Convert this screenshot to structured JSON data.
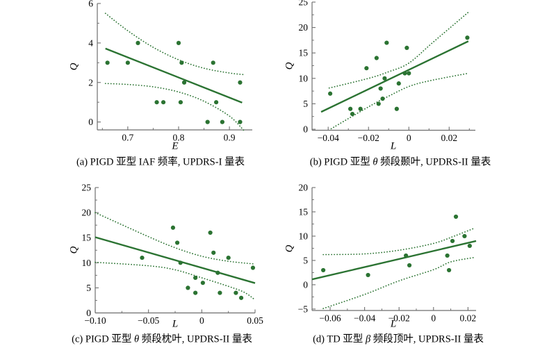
{
  "figure": {
    "background": "#ffffff",
    "accent_green": "#2b7332",
    "axis_color": "#6e6e6e",
    "text_color": "#000000"
  },
  "chart_data": [
    {
      "id": "a",
      "type": "scatter",
      "caption": "(a) PIGD 亚型 IAF 频率, UPDRS-I 量表",
      "xlabel": "E",
      "ylabel": "Q",
      "xlim": [
        0.64,
        0.945
      ],
      "ylim": [
        -0.4,
        6
      ],
      "xticks": [
        0.7,
        0.8,
        0.9
      ],
      "xtick_labels": [
        "0.7",
        "0.8",
        "0.9"
      ],
      "xminor": [
        0.65,
        0.75,
        0.85
      ],
      "yticks": [
        0,
        2,
        4,
        6
      ],
      "ytick_labels": [
        "0",
        "2",
        "4",
        "6"
      ],
      "yminor": [
        1,
        3,
        5
      ],
      "points": [
        [
          0.66,
          3
        ],
        [
          0.7,
          3
        ],
        [
          0.72,
          4
        ],
        [
          0.757,
          1
        ],
        [
          0.77,
          1
        ],
        [
          0.8,
          4
        ],
        [
          0.806,
          3
        ],
        [
          0.811,
          2
        ],
        [
          0.804,
          1
        ],
        [
          0.857,
          0
        ],
        [
          0.868,
          3
        ],
        [
          0.874,
          1
        ],
        [
          0.886,
          0
        ],
        [
          0.921,
          2
        ],
        [
          0.921,
          0
        ]
      ],
      "regression": [
        [
          0.656,
          3.72
        ],
        [
          0.925,
          0.98
        ]
      ],
      "ci_upper": [
        [
          0.656,
          5.5
        ],
        [
          0.7,
          4.62
        ],
        [
          0.75,
          3.78
        ],
        [
          0.8,
          3.15
        ],
        [
          0.85,
          2.72
        ],
        [
          0.9,
          2.48
        ],
        [
          0.928,
          2.4
        ]
      ],
      "ci_lower": [
        [
          0.656,
          1.95
        ],
        [
          0.7,
          1.9
        ],
        [
          0.75,
          1.78
        ],
        [
          0.8,
          1.52
        ],
        [
          0.85,
          1.05
        ],
        [
          0.9,
          0.3
        ],
        [
          0.928,
          -0.42
        ]
      ]
    },
    {
      "id": "b",
      "type": "scatter",
      "caption": "(b) PIGD 亚型 θ 频段颞叶, UPDRS-II 量表",
      "xlabel": "L",
      "ylabel": "Q",
      "xlim": [
        -0.048,
        0.033
      ],
      "ylim": [
        -0.2,
        25
      ],
      "xticks": [
        -0.04,
        -0.02,
        0,
        0.02
      ],
      "xtick_labels": [
        "−0.04",
        "−0.02",
        "0",
        "0.02"
      ],
      "xminor": [
        -0.03,
        -0.01,
        0.01,
        0.03
      ],
      "yticks": [
        0,
        5,
        10,
        15,
        20,
        25
      ],
      "ytick_labels": [
        "0",
        "5",
        "10",
        "15",
        "20",
        "25"
      ],
      "yminor": [
        2.5,
        7.5,
        12.5,
        17.5,
        22.5
      ],
      "points": [
        [
          -0.039,
          7
        ],
        [
          -0.029,
          4
        ],
        [
          -0.028,
          3
        ],
        [
          -0.024,
          4
        ],
        [
          -0.021,
          12
        ],
        [
          -0.016,
          14
        ],
        [
          -0.015,
          5
        ],
        [
          -0.014,
          8
        ],
        [
          -0.013,
          6
        ],
        [
          -0.012,
          10
        ],
        [
          -0.011,
          17
        ],
        [
          -0.006,
          4
        ],
        [
          -0.005,
          9
        ],
        [
          -0.002,
          11
        ],
        [
          -0.001,
          16
        ],
        [
          0.0,
          11
        ],
        [
          0.029,
          18
        ]
      ],
      "regression": [
        [
          -0.0435,
          3.4
        ],
        [
          0.0295,
          17.3
        ]
      ],
      "ci_upper": [
        [
          -0.0395,
          8.1
        ],
        [
          -0.02,
          10.0
        ],
        [
          -0.01,
          11.3
        ],
        [
          0.0,
          13.0
        ],
        [
          0.012,
          17.1
        ],
        [
          0.0295,
          23.0
        ]
      ],
      "ci_lower": [
        [
          -0.0385,
          0.1
        ],
        [
          -0.02,
          4.4
        ],
        [
          -0.01,
          6.5
        ],
        [
          0.0,
          8.4
        ],
        [
          0.01,
          9.5
        ],
        [
          0.0295,
          11.0
        ]
      ]
    },
    {
      "id": "c",
      "type": "scatter",
      "caption": "(c) PIGD 亚型 θ 频段枕叶, UPDRS-II 量表",
      "xlabel": "L",
      "ylabel": "Q",
      "xlim": [
        -0.1,
        0.05
      ],
      "ylim": [
        0,
        25
      ],
      "xticks": [
        -0.1,
        -0.05,
        0,
        0.05
      ],
      "xtick_labels": [
        "−0.10",
        "−0.05",
        "0",
        "0.05"
      ],
      "xminor": [
        -0.075,
        -0.025,
        0.025
      ],
      "yticks": [
        0,
        5,
        10,
        15,
        20,
        25
      ],
      "ytick_labels": [
        "0",
        "5",
        "10",
        "15",
        "20",
        "25"
      ],
      "yminor": [
        2.5,
        7.5,
        12.5,
        17.5,
        22.5
      ],
      "points": [
        [
          -0.056,
          11
        ],
        [
          -0.027,
          17
        ],
        [
          -0.023,
          14
        ],
        [
          -0.02,
          10
        ],
        [
          -0.013,
          5
        ],
        [
          -0.006,
          7
        ],
        [
          -0.006,
          4
        ],
        [
          0.001,
          6
        ],
        [
          0.008,
          16
        ],
        [
          0.011,
          12
        ],
        [
          0.015,
          8
        ],
        [
          0.017,
          4
        ],
        [
          0.025,
          11
        ],
        [
          0.032,
          4
        ],
        [
          0.037,
          3
        ],
        [
          0.048,
          9
        ]
      ],
      "regression": [
        [
          -0.1,
          15.1
        ],
        [
          0.05,
          5.95
        ]
      ],
      "ci_upper": [
        [
          -0.1,
          20.0
        ],
        [
          -0.05,
          15.2
        ],
        [
          -0.025,
          13.0
        ],
        [
          0.0,
          11.3
        ],
        [
          0.025,
          10.3
        ],
        [
          0.05,
          9.75
        ]
      ],
      "ci_lower": [
        [
          -0.1,
          10.1
        ],
        [
          -0.05,
          9.4
        ],
        [
          -0.025,
          8.6
        ],
        [
          0.0,
          7.0
        ],
        [
          0.025,
          5.3
        ],
        [
          0.04,
          4.1
        ],
        [
          0.05,
          2.6
        ]
      ]
    },
    {
      "id": "d",
      "type": "scatter",
      "caption": "(d) TD 亚型 β 频段顶叶, UPDRS-II 量表",
      "xlabel": "L",
      "ylabel": "Q",
      "xlim": [
        -0.0705,
        0.0247
      ],
      "ylim": [
        -5.3,
        20
      ],
      "xticks": [
        -0.06,
        -0.04,
        -0.02,
        0,
        0.02
      ],
      "xtick_labels": [
        "−0.06",
        "−0.04",
        "−0.02",
        "0",
        "0.02"
      ],
      "xminor": [
        -0.05,
        -0.03,
        -0.01,
        0.01
      ],
      "yticks": [
        -5,
        0,
        5,
        10,
        15,
        20
      ],
      "ytick_labels": [
        "−5",
        "0",
        "5",
        "10",
        "15",
        "20"
      ],
      "yminor": [
        -2.5,
        2.5,
        7.5,
        12.5,
        17.5
      ],
      "points": [
        [
          -0.064,
          3
        ],
        [
          -0.038,
          2
        ],
        [
          -0.016,
          6
        ],
        [
          -0.014,
          4
        ],
        [
          0.008,
          6
        ],
        [
          0.009,
          3
        ],
        [
          0.011,
          9
        ],
        [
          0.013,
          14
        ],
        [
          0.018,
          10
        ],
        [
          0.021,
          8
        ]
      ],
      "regression": [
        [
          -0.0705,
          1.1
        ],
        [
          0.0247,
          9.0
        ]
      ],
      "ci_upper": [
        [
          -0.064,
          6.2
        ],
        [
          -0.04,
          6.35
        ],
        [
          -0.02,
          7.1
        ],
        [
          0.0,
          8.5
        ],
        [
          0.012,
          10.0
        ],
        [
          0.0235,
          11.6
        ]
      ],
      "ci_lower": [
        [
          -0.064,
          -4.9
        ],
        [
          -0.04,
          -2.0
        ],
        [
          -0.02,
          0.8
        ],
        [
          0.0,
          3.1
        ],
        [
          0.01,
          4.7
        ],
        [
          0.0235,
          5.6
        ]
      ]
    }
  ]
}
